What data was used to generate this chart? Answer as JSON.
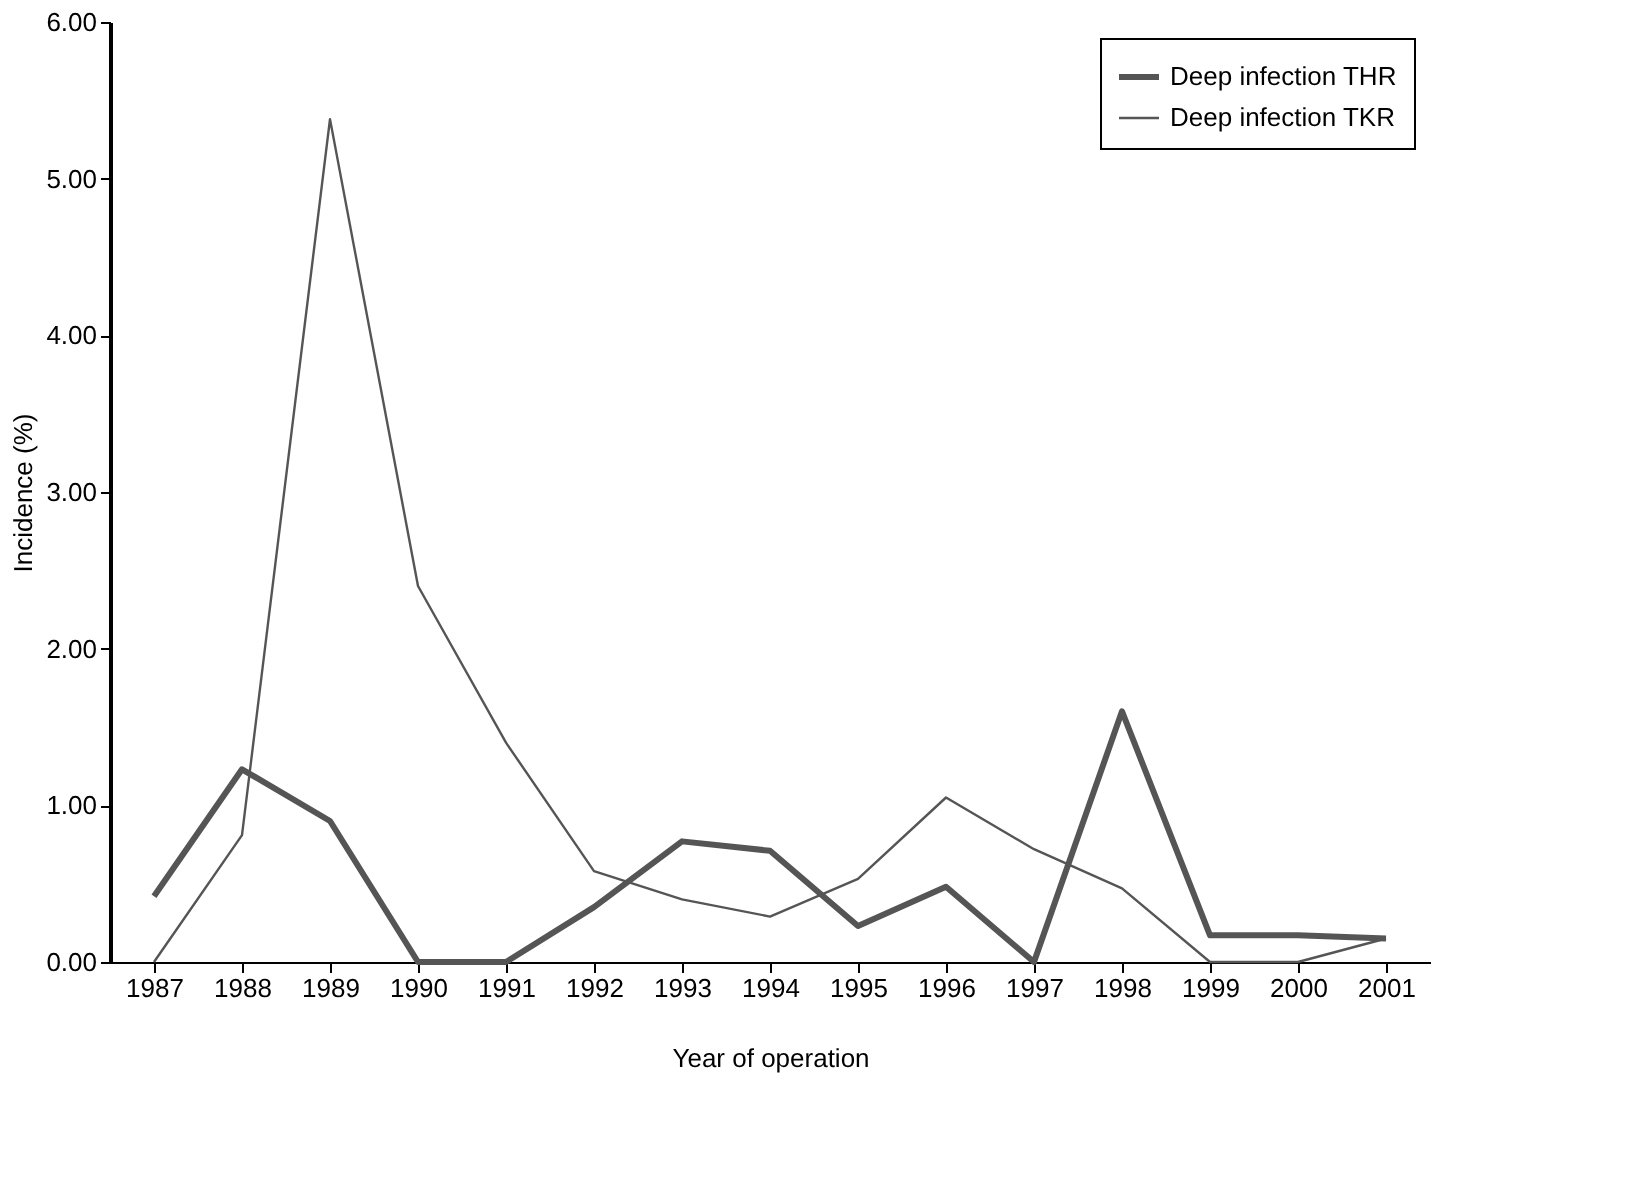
{
  "chart_data": {
    "type": "line",
    "xlabel": "Year of operation",
    "ylabel": "Incidence (%)",
    "categories": [
      "1987",
      "1988",
      "1989",
      "1990",
      "1991",
      "1992",
      "1993",
      "1994",
      "1995",
      "1996",
      "1997",
      "1998",
      "1999",
      "2000",
      "2001"
    ],
    "series": [
      {
        "name": "Deep infection THR",
        "color": "#555555",
        "values": [
          0.42,
          1.23,
          0.9,
          0,
          0,
          0.35,
          0.77,
          0.71,
          0.23,
          0.48,
          0,
          1.6,
          0.17,
          0.17,
          0.15
        ]
      },
      {
        "name": "Deep infection TKR",
        "color": "#555555",
        "values": [
          0,
          0.81,
          5.38,
          2.4,
          1.4,
          0.58,
          0.4,
          0.29,
          0.53,
          1.05,
          0.72,
          0.47,
          0,
          0,
          0.15
        ]
      }
    ],
    "ylim": [
      0,
      6
    ],
    "yticks": [
      {
        "value": 0,
        "label": "0.00"
      },
      {
        "value": 1,
        "label": "1.00"
      },
      {
        "value": 2,
        "label": "2.00"
      },
      {
        "value": 3,
        "label": "3.00"
      },
      {
        "value": 4,
        "label": "4.00"
      },
      {
        "value": 5,
        "label": "5.00"
      },
      {
        "value": 6,
        "label": "6.00"
      }
    ],
    "grid": false,
    "legend": "top right",
    "marker": "none",
    "line_style": "solid"
  }
}
